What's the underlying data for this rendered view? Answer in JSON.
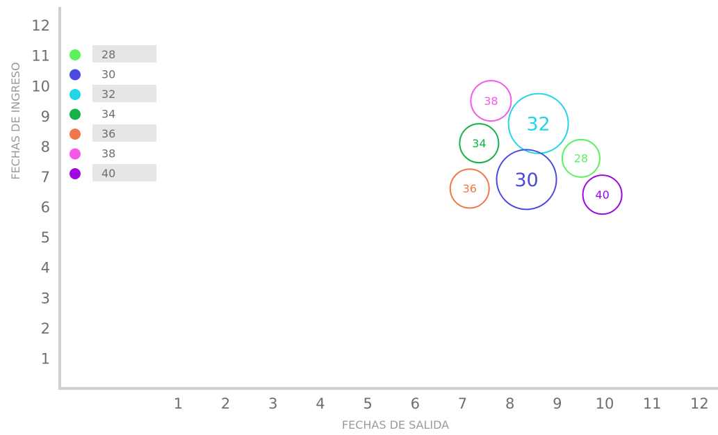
{
  "chart_data": {
    "type": "scatter",
    "subtype": "bubble",
    "xlabel": "FECHAS DE SALIDA",
    "ylabel": "FECHAS DE INGRESO",
    "xlim": [
      -1.5,
      12.2
    ],
    "ylim": [
      0,
      12.6
    ],
    "xticks": [
      "1",
      "2",
      "3",
      "4",
      "5",
      "6",
      "7",
      "8",
      "9",
      "10",
      "11",
      "12"
    ],
    "yticks": [
      "1",
      "2",
      "3",
      "4",
      "5",
      "6",
      "7",
      "8",
      "9",
      "10",
      "11",
      "12"
    ],
    "legend_position": "top-left",
    "grid": false,
    "legend": [
      {
        "label": "28",
        "color": "#5cf25c"
      },
      {
        "label": "30",
        "color": "#4a4adf"
      },
      {
        "label": "32",
        "color": "#22d6e6"
      },
      {
        "label": "34",
        "color": "#13b34a"
      },
      {
        "label": "36",
        "color": "#f07848"
      },
      {
        "label": "38",
        "color": "#f458e6"
      },
      {
        "label": "40",
        "color": "#9d08e0"
      }
    ],
    "points": [
      {
        "label": "38",
        "x": 7.6,
        "y": 9.5,
        "size": 38,
        "color": "#f458e6"
      },
      {
        "label": "32",
        "x": 8.6,
        "y": 8.75,
        "size": 32,
        "color": "#22d6e6"
      },
      {
        "label": "34",
        "x": 7.35,
        "y": 8.1,
        "size": 34,
        "color": "#13b34a"
      },
      {
        "label": "28",
        "x": 9.5,
        "y": 7.6,
        "size": 28,
        "color": "#5cf25c"
      },
      {
        "label": "30",
        "x": 8.35,
        "y": 6.9,
        "size": 30,
        "color": "#4a4adf"
      },
      {
        "label": "36",
        "x": 7.15,
        "y": 6.6,
        "size": 36,
        "color": "#f07848"
      },
      {
        "label": "40",
        "x": 9.95,
        "y": 6.4,
        "size": 40,
        "color": "#9d08e0"
      }
    ]
  }
}
